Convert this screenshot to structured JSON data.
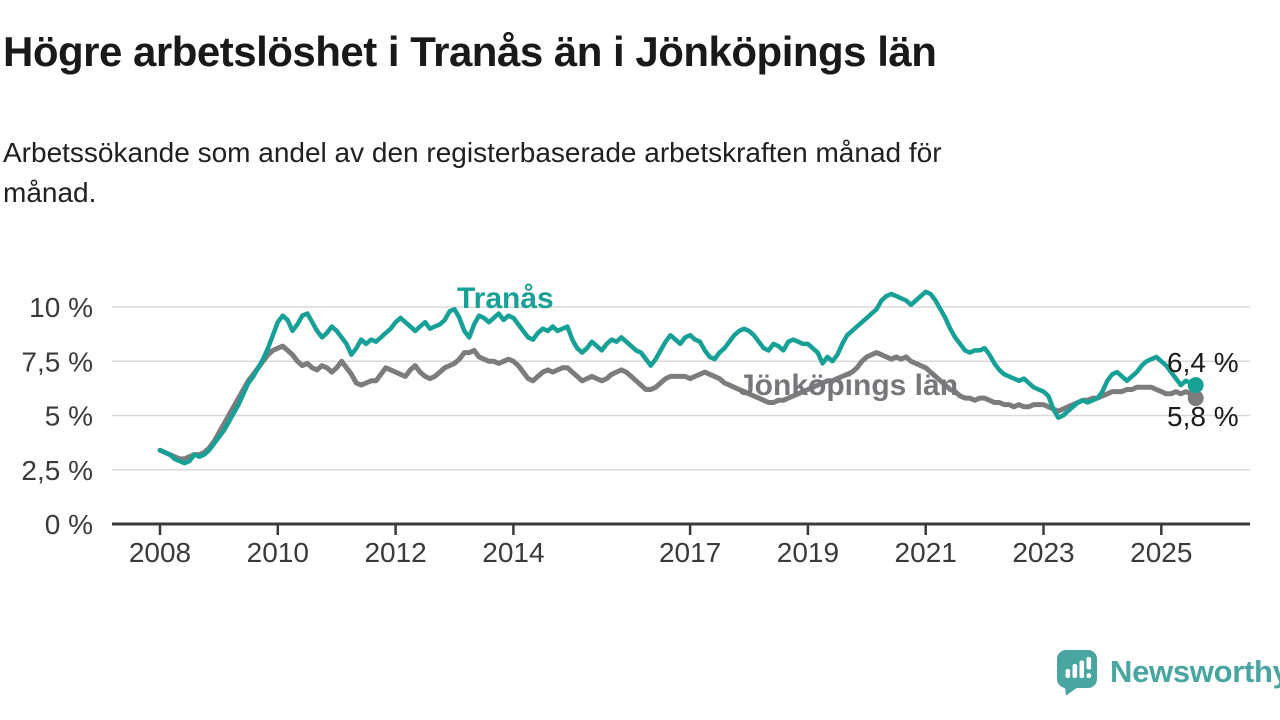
{
  "header": {
    "title": "Högre arbetslöshet i Tranås än i Jönköpings län",
    "subtitle_line1": "Arbetssökande som andel av den registerbaserade arbetskraften månad för",
    "subtitle_line2": "månad."
  },
  "chart_data": {
    "type": "line",
    "title": "Högre arbetslöshet i Tranås än i Jönköpings län",
    "subtitle": "Arbetssökande som andel av den registerbaserade arbetskraften månad för månad.",
    "legend_position": "inline-labels-on-lines",
    "grid": true,
    "x_axis": {
      "start_year": 2008,
      "interval": "monthly",
      "last_point": "2025-08",
      "ticks": [
        {
          "year": 2008,
          "label": "2008"
        },
        {
          "year": 2010,
          "label": "2010"
        },
        {
          "year": 2012,
          "label": "2012"
        },
        {
          "year": 2014,
          "label": "2014"
        },
        {
          "year": 2017,
          "label": "2017"
        },
        {
          "year": 2019,
          "label": "2019"
        },
        {
          "year": 2021,
          "label": "2021"
        },
        {
          "year": 2023,
          "label": "2023"
        },
        {
          "year": 2025,
          "label": "2025"
        }
      ]
    },
    "y_axis": {
      "unit": "%",
      "range": [
        0,
        10.7
      ],
      "ticks": [
        {
          "value": 0,
          "label": "0 %"
        },
        {
          "value": 2.5,
          "label": "2,5 %"
        },
        {
          "value": 5,
          "label": "5 %"
        },
        {
          "value": 7.5,
          "label": "7,5 %"
        },
        {
          "value": 10,
          "label": "10 %"
        }
      ]
    },
    "style": {
      "grid_color": "#d8d8d8",
      "axis_color": "#3a3a3a"
    },
    "series": [
      {
        "name": "Tranås",
        "inline_label": "Tranås",
        "color": "#16a096",
        "line_width": 4.5,
        "end_value": 6.4,
        "end_label": "6,4 %",
        "values": [
          3.4,
          3.3,
          3.2,
          3.0,
          2.9,
          2.8,
          2.9,
          3.2,
          3.1,
          3.2,
          3.4,
          3.7,
          4.0,
          4.3,
          4.7,
          5.1,
          5.5,
          6.0,
          6.5,
          6.8,
          7.2,
          7.6,
          8.1,
          8.7,
          9.3,
          9.6,
          9.4,
          8.9,
          9.2,
          9.6,
          9.7,
          9.3,
          8.9,
          8.6,
          8.8,
          9.1,
          8.9,
          8.6,
          8.3,
          7.8,
          8.1,
          8.5,
          8.3,
          8.5,
          8.4,
          8.6,
          8.8,
          9.0,
          9.3,
          9.5,
          9.3,
          9.1,
          8.9,
          9.1,
          9.3,
          9.0,
          9.1,
          9.2,
          9.4,
          9.8,
          9.9,
          9.5,
          8.9,
          8.6,
          9.2,
          9.6,
          9.5,
          9.3,
          9.5,
          9.7,
          9.4,
          9.6,
          9.5,
          9.2,
          8.9,
          8.6,
          8.5,
          8.8,
          9.0,
          8.9,
          9.1,
          8.9,
          9.0,
          9.1,
          8.5,
          8.1,
          7.9,
          8.1,
          8.4,
          8.2,
          8.0,
          8.3,
          8.5,
          8.4,
          8.6,
          8.4,
          8.2,
          8.0,
          7.9,
          7.6,
          7.3,
          7.6,
          8.0,
          8.4,
          8.7,
          8.5,
          8.3,
          8.6,
          8.7,
          8.5,
          8.4,
          8.0,
          7.7,
          7.6,
          7.9,
          8.1,
          8.4,
          8.7,
          8.9,
          9.0,
          8.9,
          8.7,
          8.4,
          8.1,
          8.0,
          8.3,
          8.2,
          8.0,
          8.4,
          8.5,
          8.4,
          8.3,
          8.3,
          8.1,
          7.9,
          7.4,
          7.7,
          7.5,
          7.8,
          8.3,
          8.7,
          8.9,
          9.1,
          9.3,
          9.5,
          9.7,
          9.9,
          10.3,
          10.5,
          10.6,
          10.5,
          10.4,
          10.3,
          10.1,
          10.3,
          10.5,
          10.7,
          10.6,
          10.3,
          9.9,
          9.5,
          9.0,
          8.6,
          8.3,
          8.0,
          7.9,
          8.0,
          8.0,
          8.1,
          7.8,
          7.4,
          7.1,
          6.9,
          6.8,
          6.7,
          6.6,
          6.7,
          6.5,
          6.3,
          6.2,
          6.1,
          5.9,
          5.3,
          4.9,
          5.0,
          5.2,
          5.4,
          5.6,
          5.7,
          5.6,
          5.7,
          5.8,
          6.1,
          6.6,
          6.9,
          7.0,
          6.8,
          6.6,
          6.8,
          7.0,
          7.3,
          7.5,
          7.6,
          7.7,
          7.5,
          7.3,
          7.0,
          6.7,
          6.4,
          6.6,
          6.5,
          6.4
        ]
      },
      {
        "name": "Jönköpings län",
        "inline_label": "Jönköpings län",
        "color": "#7c7c7f",
        "line_width": 5,
        "end_value": 5.8,
        "end_label": "5,8 %",
        "values": [
          3.4,
          3.3,
          3.2,
          3.1,
          3.0,
          3.0,
          3.1,
          3.2,
          3.2,
          3.3,
          3.5,
          3.8,
          4.2,
          4.6,
          5.0,
          5.4,
          5.8,
          6.2,
          6.6,
          6.9,
          7.2,
          7.5,
          7.8,
          8.0,
          8.1,
          8.2,
          8.0,
          7.8,
          7.5,
          7.3,
          7.4,
          7.2,
          7.1,
          7.3,
          7.2,
          7.0,
          7.2,
          7.5,
          7.2,
          6.9,
          6.5,
          6.4,
          6.5,
          6.6,
          6.6,
          6.9,
          7.2,
          7.1,
          7.0,
          6.9,
          6.8,
          7.1,
          7.3,
          7.0,
          6.8,
          6.7,
          6.8,
          7.0,
          7.2,
          7.3,
          7.4,
          7.6,
          7.9,
          7.9,
          8.0,
          7.7,
          7.6,
          7.5,
          7.5,
          7.4,
          7.5,
          7.6,
          7.5,
          7.3,
          7.0,
          6.7,
          6.6,
          6.8,
          7.0,
          7.1,
          7.0,
          7.1,
          7.2,
          7.2,
          7.0,
          6.8,
          6.6,
          6.7,
          6.8,
          6.7,
          6.6,
          6.7,
          6.9,
          7.0,
          7.1,
          7.0,
          6.8,
          6.6,
          6.4,
          6.2,
          6.2,
          6.3,
          6.5,
          6.7,
          6.8,
          6.8,
          6.8,
          6.8,
          6.7,
          6.8,
          6.9,
          7.0,
          6.9,
          6.8,
          6.7,
          6.5,
          6.4,
          6.3,
          6.2,
          6.1,
          6.0,
          5.9,
          5.8,
          5.7,
          5.6,
          5.6,
          5.7,
          5.7,
          5.8,
          5.9,
          6.0,
          6.1,
          6.2,
          6.3,
          6.4,
          6.5,
          6.6,
          6.6,
          6.7,
          6.8,
          6.9,
          7.0,
          7.2,
          7.5,
          7.7,
          7.8,
          7.9,
          7.8,
          7.7,
          7.6,
          7.7,
          7.6,
          7.7,
          7.5,
          7.4,
          7.3,
          7.2,
          7.0,
          6.8,
          6.6,
          6.4,
          6.2,
          6.1,
          5.9,
          5.8,
          5.8,
          5.7,
          5.8,
          5.8,
          5.7,
          5.6,
          5.6,
          5.5,
          5.5,
          5.4,
          5.5,
          5.4,
          5.4,
          5.5,
          5.5,
          5.5,
          5.4,
          5.3,
          5.2,
          5.3,
          5.4,
          5.5,
          5.6,
          5.7,
          5.7,
          5.8,
          5.8,
          5.9,
          6.0,
          6.1,
          6.1,
          6.1,
          6.2,
          6.2,
          6.3,
          6.3,
          6.3,
          6.3,
          6.2,
          6.1,
          6.0,
          6.0,
          6.1,
          6.0,
          6.1,
          6.0,
          5.8
        ]
      }
    ]
  },
  "branding": {
    "logo_text": "Newsworthy",
    "logo_color": "#48a5a0"
  }
}
